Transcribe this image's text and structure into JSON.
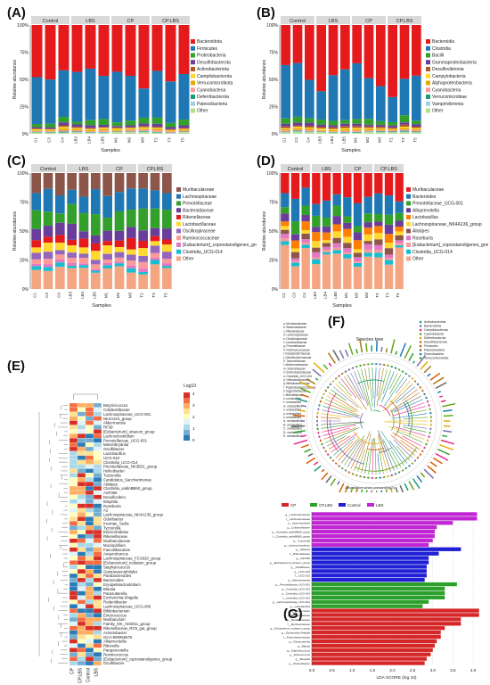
{
  "labels": {
    "a": "(A)",
    "b": "(B)",
    "c": "(C)",
    "d": "(D)",
    "e": "(E)",
    "f": "(F)",
    "g": "(G)"
  },
  "groups": [
    "Control",
    "LBS",
    "CP",
    "CP.LBS"
  ],
  "samples_ab": [
    "C1",
    "C3",
    "C4",
    "LB3",
    "LB4",
    "LB5",
    "M1",
    "M2",
    "M3",
    "T2",
    "T3",
    "T5"
  ],
  "samples_cd": [
    "C1",
    "C3",
    "C4",
    "LB3",
    "LB4",
    "LB5",
    "M1",
    "M2",
    "M3",
    "T2",
    "T3",
    "T5"
  ],
  "axis": {
    "xlabel": "Samples",
    "ylabel": "Relative abundance",
    "yticks": [
      "0%",
      "25%",
      "50%",
      "75%",
      "100%"
    ]
  },
  "panel_a": {
    "legend": [
      "Bacteroidota",
      "Firmicutes",
      "Proteobacteria",
      "Desulfobacterota",
      "Actinobacteriota",
      "Campilobacterota",
      "Verrucomicrobiota",
      "Cyanobacteria",
      "Deferribacterota",
      "Patescibacteria",
      "Other"
    ],
    "colors": [
      "#e41a1c",
      "#1f78b4",
      "#33a02c",
      "#6a3d9a",
      "#b15928",
      "#ffd92f",
      "#e6ab02",
      "#fb9a99",
      "#1b9e77",
      "#a6cee3",
      "#b2df8a"
    ]
  },
  "panel_b": {
    "legend": [
      "Bacteroidia",
      "Clostridia",
      "Bacilli",
      "Gammaproteobacteria",
      "Desulfovibrionia",
      "Campylobacteria",
      "Alphaproteobacteria",
      "Cyanobacteria",
      "Verrucomicrobiae",
      "Vampirivibrionia",
      "Other"
    ],
    "colors": [
      "#e41a1c",
      "#1f78b4",
      "#33a02c",
      "#6a3d9a",
      "#b15928",
      "#ffd92f",
      "#e6ab02",
      "#fb9a99",
      "#1b9e77",
      "#a6cee3",
      "#b2df8a"
    ]
  },
  "panel_c": {
    "legend": [
      "Muribaculaceae",
      "Lachnospiraceae",
      "Prevotellaceae",
      "Bacteroidaceae",
      "Rikenellaceae",
      "Lactobacillaceae",
      "Oscillospiraceae",
      "Ruminococcaceae",
      "[Eubacterium]_coprostanoligenes_group",
      "Clostridia_UCG-014",
      "Other"
    ],
    "colors": [
      "#8c564b",
      "#1f78b4",
      "#33a02c",
      "#6a3d9a",
      "#e41a1c",
      "#ffd92f",
      "#9467bd",
      "#fb9a99",
      "#e377c2",
      "#17becf",
      "#f4a582"
    ]
  },
  "panel_d": {
    "legend": [
      "Muribaculaceae",
      "Bacteroides",
      "Prevotellaceae_UCG-001",
      "Alloprevotella",
      "Lactobacillus",
      "Lachnospiraceae_NK4A136_group",
      "Alistipes",
      "Roseburia",
      "[Eubacterium]_coprostanoligenes_group",
      "Clostridia_UCG-014",
      "Other"
    ],
    "colors": [
      "#e41a1c",
      "#1f78b4",
      "#33a02c",
      "#6a3d9a",
      "#ff7f00",
      "#ffd92f",
      "#8c564b",
      "#e377c2",
      "#fb9a99",
      "#17becf",
      "#f4a582"
    ]
  },
  "panel_e": {
    "scale_title": "Log10",
    "scale_ticks": [
      "4",
      "3",
      "2",
      "1",
      "0"
    ],
    "columns": [
      "CP",
      "CP.LBS",
      "Control",
      "LBS"
    ],
    "rows": [
      "Butyricicoccus",
      "Colidextribacter",
      "Lachnospiraceae_UCG-001",
      "NK4A214_group",
      "Akkermansia",
      "RF39",
      "[Eubacterium]_siraeum_group",
      "Lachnoclostridium",
      "Prevotellaceae_UCG-001",
      "Marvinbryantia",
      "Oscillibacter",
      "Lactobacillus",
      "UCG-010",
      "Clostridia_UCG-014",
      "Prevotellaceae_NK3B31_group",
      "Helicobacter",
      "Tuzzerella",
      "Candidatus_Saccharimonas",
      "Alistipes",
      "Clostridia_vadinBB60_group",
      "ASF356",
      "Desulfovibrio",
      "Bilophila",
      "Roseburia",
      "A2",
      "Lachnospiraceae_NK4A136_group",
      "Odoribacter",
      "Incertae_Sedis",
      "Tyzzerella",
      "Enterorhabdus",
      "Rikenellaceae",
      "Muribaculaceae",
      "Mucispirillum",
      "Faecalibaculum",
      "Anaerotruncus",
      "Lachnospiraceae_FCS020_group",
      "[Eubacterium]_nodatum_group",
      "Staphylococcus",
      "Gastranaerophilales",
      "Parabacteroides",
      "Bacteroides",
      "Erysipelatoclostridium",
      "Blautia",
      "Parasutterella",
      "Escherichia-Shigella",
      "Rodentibacter",
      "Lachnospiraceae_UCG-006",
      "Bifidobacterium",
      "Enterococcus",
      "Muribaculum",
      "Family_XIII_AD3011_group",
      "Rikenellaceae_RC9_gut_group",
      "Acinetobacter",
      "GCA-900066575",
      "Alloprevotella",
      "Rikenella",
      "Paraprevotella",
      "Ruminococcus",
      "[Eubacterium]_coprostanoligenes_group",
      "Oscillibacter"
    ]
  },
  "panel_f": {
    "title": "Species tree",
    "xlabel": "Abundance when present(log2)",
    "legend_left": [
      "a: Muribaculaceae",
      "b: Bacteroidaceae",
      "c: Rikenellaceae",
      "d: Lachnospiraceae",
      "e: Oscillospiraceae",
      "f: Lactobacillaceae",
      "g: Prevotellaceae",
      "h: Ruminococcaceae",
      "i: Erysipelotrichaceae",
      "j: Desulfovibrionaceae",
      "k: Tannerellaceae",
      "l: Akkermansiaceae",
      "m: Sutterellaceae",
      "n: Enterobacteriaceae",
      "o: Clostridia_UCG-014",
      "p: Helicobacteraceae",
      "q: Bifidobacteriaceae",
      "r: Peptostreptococcaceae",
      "s: Eggerthellaceae",
      "t: Marinifilaceae",
      "u: unclassified",
      "v: unclassified",
      "w: unclassified",
      "x: unclassified",
      "y: unclassified",
      "z: unclassified",
      "A: unclassified",
      "B: unclassified",
      "C: unclassified",
      "D: unclassified",
      "E: unclassified"
    ],
    "legend_right": [
      "Actinobacteriota",
      "Bacteroidota",
      "Campilobacterota",
      "Cyanobacteria",
      "Deferribacterota",
      "Desulfobacterota",
      "Firmicutes",
      "Patescibacteria",
      "Proteobacteria",
      "Verrucomicrobiota"
    ],
    "legend_right_colors": [
      "#1b9e77",
      "#7570b3",
      "#e7298a",
      "#66a61e",
      "#e6ab02",
      "#a6761d",
      "#d95f02",
      "#666666",
      "#1f78b4",
      "#33a02c"
    ]
  },
  "panel_g": {
    "legend": [
      "CP",
      "CP.LBS",
      "Control",
      "LBS"
    ],
    "colors": [
      "#d62728",
      "#2ca02c",
      "#1f1fd6",
      "#c026d3"
    ],
    "xlabel": "LDA SCORE (log 10)",
    "xticks": [
      "0.0",
      "0.5",
      "1.0",
      "1.5",
      "2.0",
      "2.5",
      "3.0",
      "3.5",
      "4.0"
    ],
    "bars": [
      {
        "label": "g__Lachnospiraceae",
        "group": "LBS",
        "value": 4.1
      },
      {
        "label": "f__Lachnospiraceae",
        "group": "LBS",
        "value": 4.1
      },
      {
        "label": "o__Lachnospirales",
        "group": "LBS",
        "value": 3.5
      },
      {
        "label": "g__Colidextribacter",
        "group": "LBS",
        "value": 3.1
      },
      {
        "label": "g__Clostridia_vadinBB60_group",
        "group": "LBS",
        "value": 3.05
      },
      {
        "label": "f__Clostridia_vadinBB60_group",
        "group": "LBS",
        "value": 3.05
      },
      {
        "label": "g__Tuzzerella",
        "group": "LBS",
        "value": 3.0
      },
      {
        "label": "g__Lachnoclostridium",
        "group": "LBS",
        "value": 2.9
      },
      {
        "label": "g__Alistipes",
        "group": "Control",
        "value": 3.7
      },
      {
        "label": "f__Rikenellaceae",
        "group": "Control",
        "value": 3.15
      },
      {
        "label": "g__ASF356",
        "group": "Control",
        "value": 2.9
      },
      {
        "label": "g__[Eubacterium]_siraeum_group",
        "group": "Control",
        "value": 2.9
      },
      {
        "label": "g__Oscillibacter",
        "group": "Control",
        "value": 2.85
      },
      {
        "label": "g__UCG-010",
        "group": "Control",
        "value": 2.85
      },
      {
        "label": "f__UCG-010",
        "group": "Control",
        "value": 2.85
      },
      {
        "label": "g__Marvinbryantia",
        "group": "Control",
        "value": 2.8
      },
      {
        "label": "g__Prevotellaceae_UCG-001",
        "group": "CP.LBS",
        "value": 3.6
      },
      {
        "label": "g__Clostridia_UCG-014",
        "group": "CP.LBS",
        "value": 3.3
      },
      {
        "label": "o__Clostridia_UCG-014",
        "group": "CP.LBS",
        "value": 3.3
      },
      {
        "label": "f__Clostridia_UCG-014",
        "group": "CP.LBS",
        "value": 3.3
      },
      {
        "label": "g__Lachnospiraceae_UCG-001",
        "group": "CP.LBS",
        "value": 2.9
      },
      {
        "label": "g__Lactobacillus",
        "group": "CP.LBS",
        "value": 2.75
      },
      {
        "label": "g__Bacteroides",
        "group": "CP",
        "value": 4.15
      },
      {
        "label": "f__Bacteroidaceae",
        "group": "CP",
        "value": 4.15
      },
      {
        "label": "g__Muribaculaceae",
        "group": "CP",
        "value": 3.7
      },
      {
        "label": "f__Muribaculaceae",
        "group": "CP",
        "value": 3.7
      },
      {
        "label": "g__Eubacterium_nodatum_group",
        "group": "CP",
        "value": 3.3
      },
      {
        "label": "g__Escherichia-Shigella",
        "group": "CP",
        "value": 3.2
      },
      {
        "label": "f__Enterobacteriaceae",
        "group": "CP",
        "value": 3.2
      },
      {
        "label": "g__Parasutterella",
        "group": "CP",
        "value": 3.1
      },
      {
        "label": "g__Blautia",
        "group": "CP",
        "value": 3.05
      },
      {
        "label": "g__Staphylococcus",
        "group": "CP",
        "value": 3.0
      },
      {
        "label": "g__Enterococcus",
        "group": "CP",
        "value": 2.95
      },
      {
        "label": "g__Bilophila",
        "group": "CP",
        "value": 2.85
      },
      {
        "label": "g__Rodentibacter",
        "group": "CP",
        "value": 2.8
      }
    ]
  }
}
